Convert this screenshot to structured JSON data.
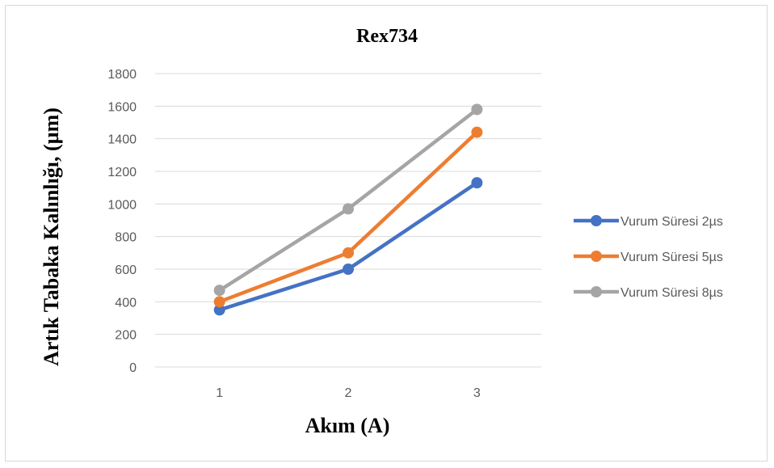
{
  "chart_data": {
    "type": "line",
    "title": "Rex734",
    "xlabel": "Akım (A)",
    "ylabel": "Artık Tabaka Kalınlığı, (µm)",
    "categories": [
      "1",
      "2",
      "3"
    ],
    "ylim": [
      0,
      1800
    ],
    "yticks": [
      0,
      200,
      400,
      600,
      800,
      1000,
      1200,
      1400,
      1600,
      1800
    ],
    "grid": true,
    "legend_position": "right",
    "series": [
      {
        "name": "Vurum Süresi 2µs",
        "color": "#4472c4",
        "values": [
          350,
          600,
          1130
        ]
      },
      {
        "name": "Vurum Süresi 5µs",
        "color": "#ed7d31",
        "values": [
          400,
          700,
          1440
        ]
      },
      {
        "name": "Vurum Süresi 8µs",
        "color": "#a5a5a5",
        "values": [
          470,
          970,
          1580
        ]
      }
    ]
  }
}
